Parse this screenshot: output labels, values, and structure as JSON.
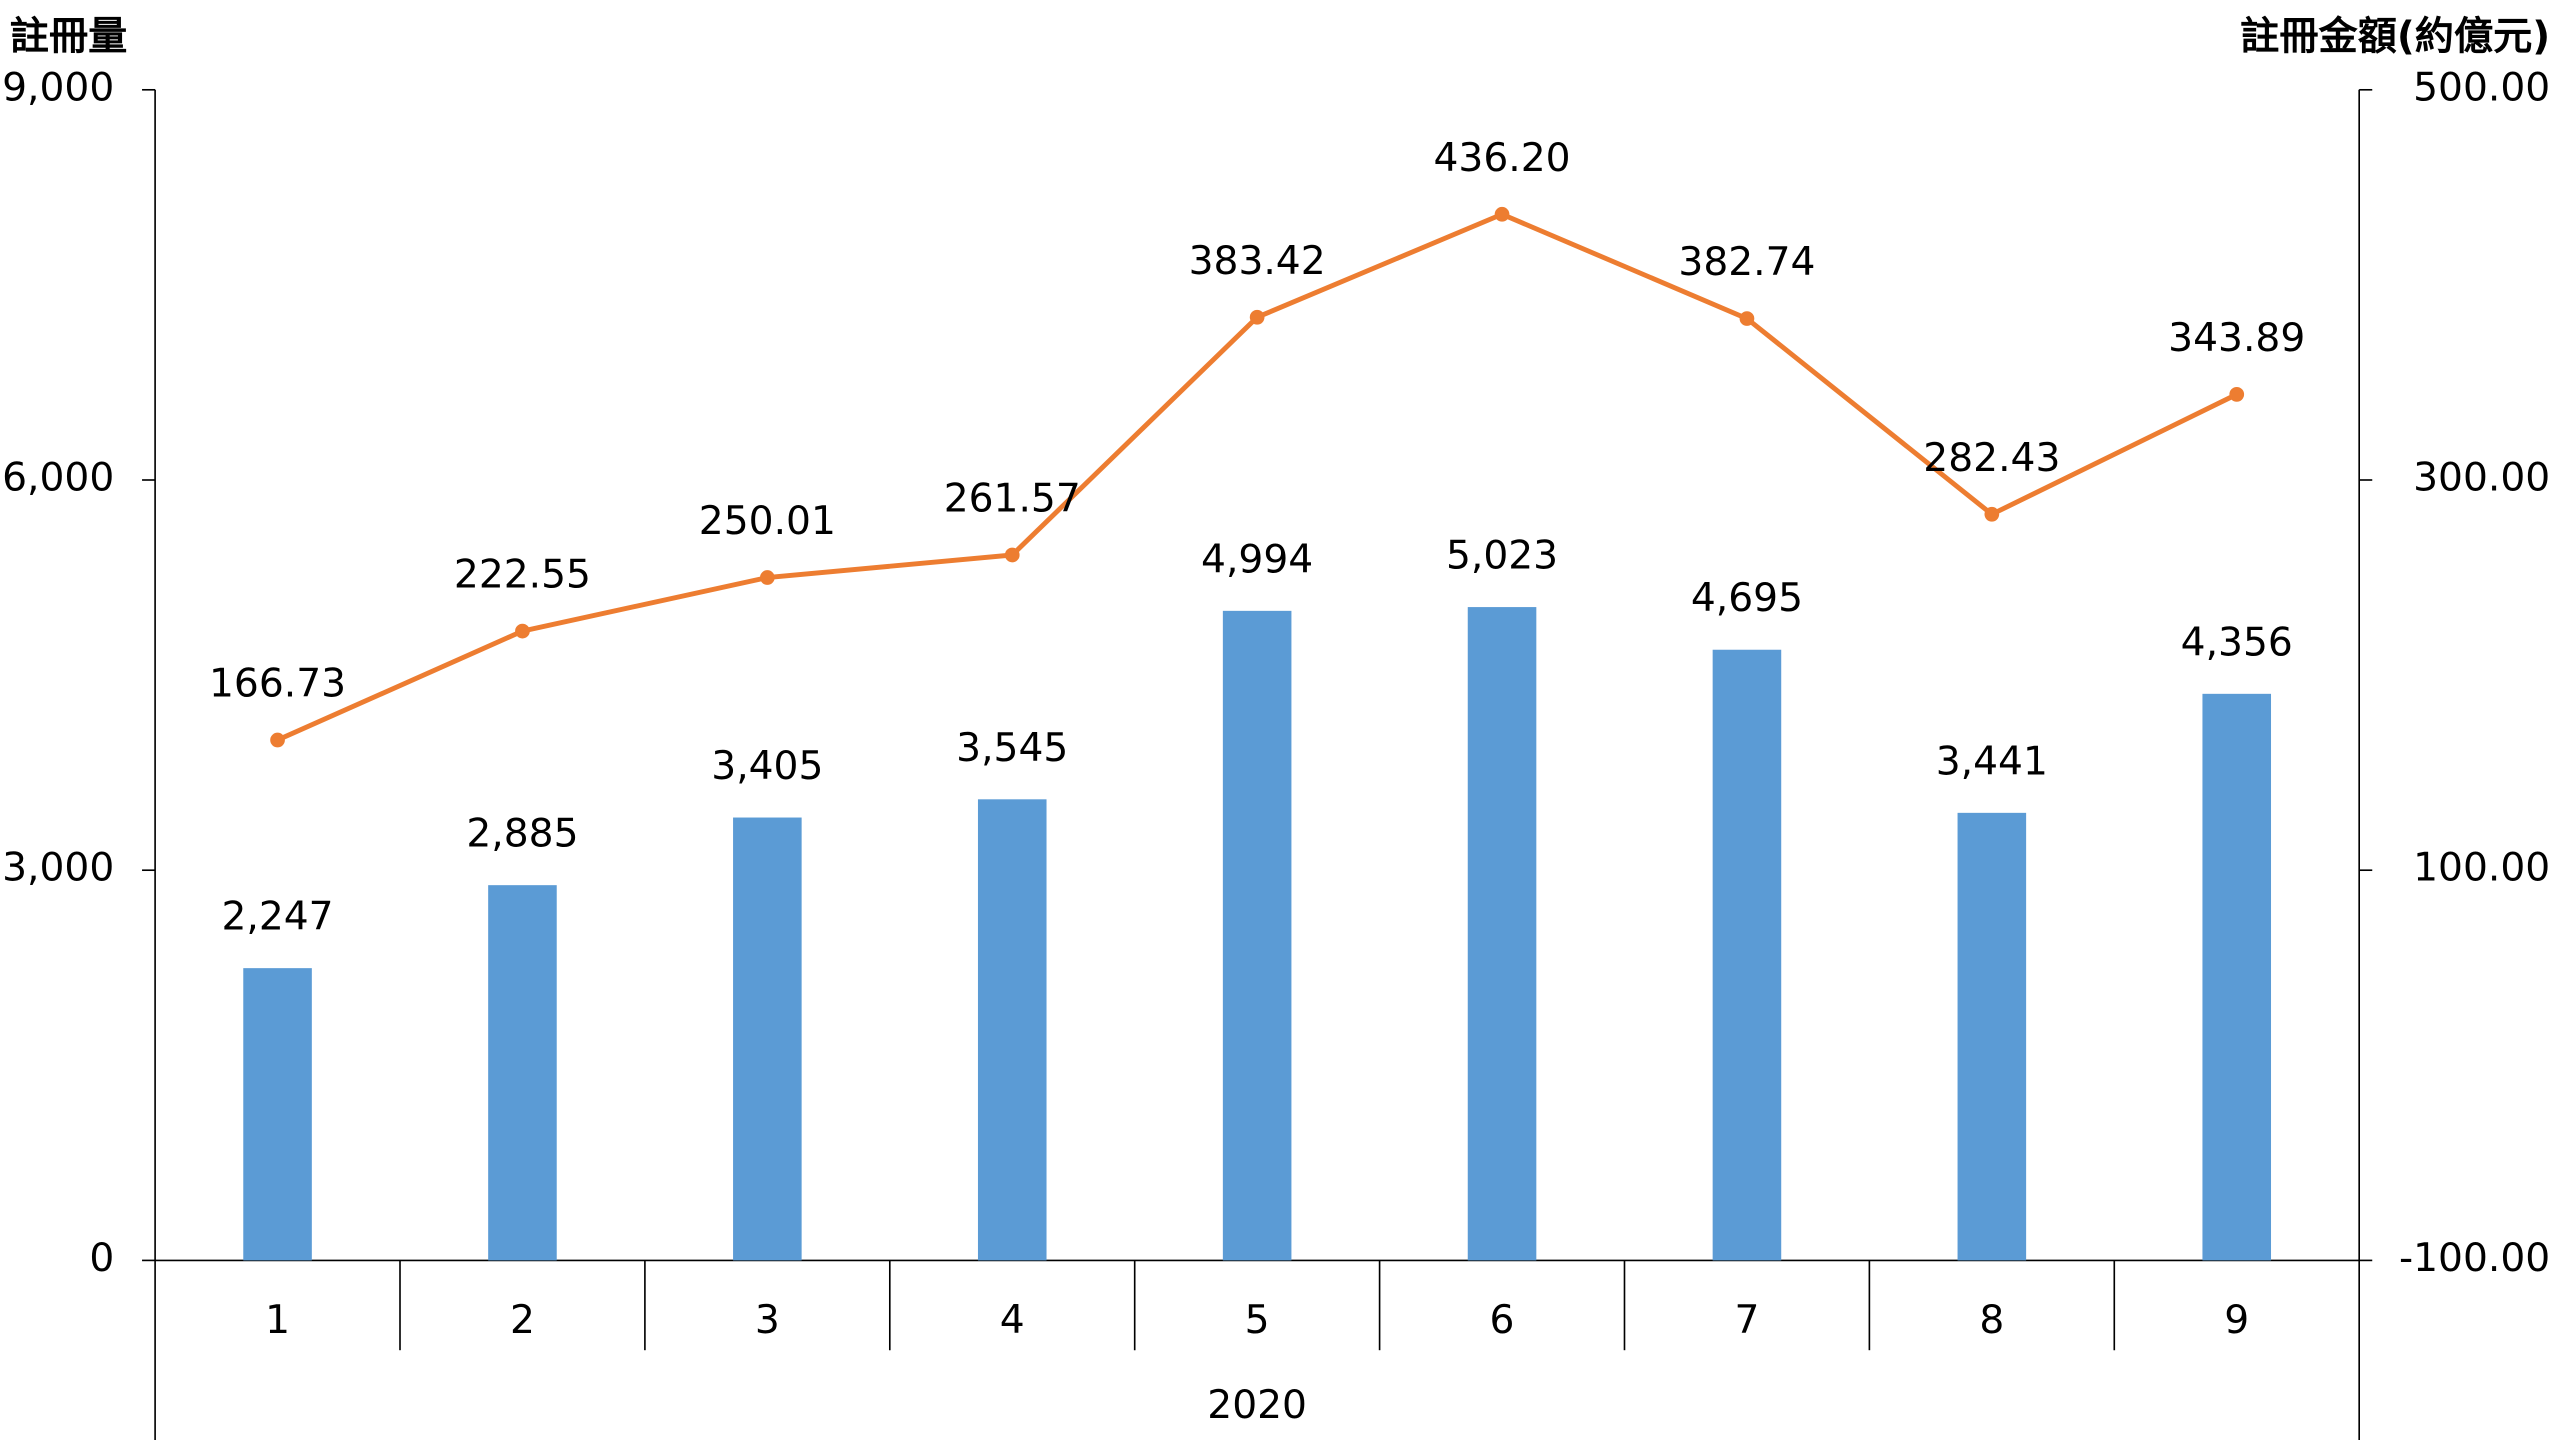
{
  "chart_data": {
    "type": "bar",
    "y_label": "註冊量",
    "y2_label": "註冊金額(約億元)",
    "group_label": "2020",
    "categories": [
      "1",
      "2",
      "3",
      "4",
      "5",
      "6",
      "7",
      "8",
      "9"
    ],
    "series": [
      {
        "color": "#5b9bd5",
        "values": [
          2247,
          2885,
          3405,
          3545,
          4994,
          5023,
          4695,
          3441,
          4356
        ],
        "value_labels": [
          "2,247",
          "2,885",
          "3,405",
          "3,545",
          "4,994",
          "5,023",
          "4,695",
          "3,441",
          "4,356"
        ]
      },
      {
        "type": "line",
        "axis": "y2",
        "color": "#ed7d31",
        "values": [
          166.73,
          222.55,
          250.01,
          261.57,
          383.42,
          436.2,
          382.74,
          282.43,
          343.89
        ],
        "value_labels": [
          "166.73",
          "222.55",
          "250.01",
          "261.57",
          "383.42",
          "436.20",
          "382.74",
          "282.43",
          "343.89"
        ]
      }
    ],
    "ylim": [
      0,
      9000
    ],
    "yticks": [
      0,
      {
        "value": 3000,
        "label": "3,000"
      },
      {
        "value": 6000,
        "label": "6,000"
      },
      {
        "value": 9000,
        "label": "9,000"
      }
    ],
    "y2lim": [
      -100,
      500
    ],
    "y2ticks": [
      {
        "value": -100,
        "label": "-100.00"
      },
      {
        "value": 100,
        "label": "100.00"
      },
      {
        "value": 300,
        "label": "300.00"
      },
      {
        "value": 500,
        "label": "500.00"
      }
    ]
  }
}
